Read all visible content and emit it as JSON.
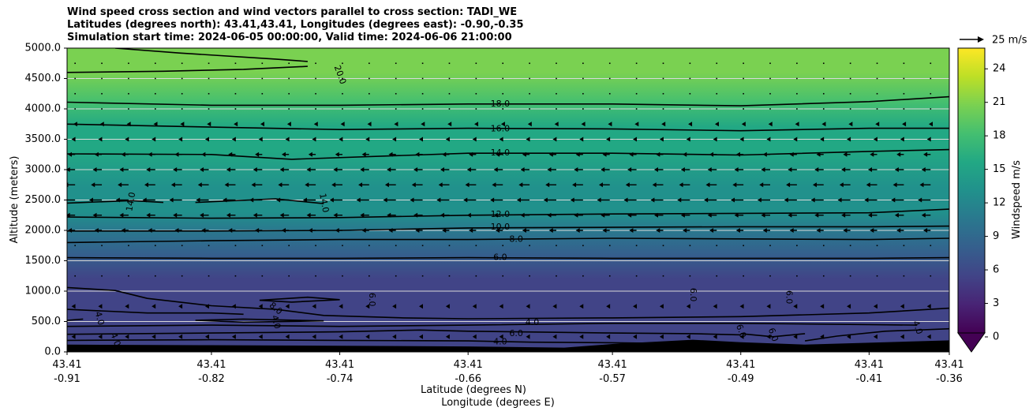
{
  "chart_data": {
    "type": "contour",
    "title_lines": [
      "Wind speed cross section and wind vectors parallel to cross section: TADI_WE",
      "Latitudes (degrees north): 43.41,43.41, Longitudes (degrees east): -0.90,-0.35",
      "Simulation start time: 2024-06-05 00:00:00, Valid time: 2024-06-06 21:00:00"
    ],
    "ylabel": "Altitude (meters)",
    "xlabel_lat": "Latitude (degrees N)",
    "xlabel_lon": "Longitude (degrees E)",
    "ylim": [
      0,
      5000
    ],
    "yticks": [
      "0.0",
      "500.0",
      "1000.0",
      "1500.0",
      "2000.0",
      "2500.0",
      "3000.0",
      "3500.0",
      "4000.0",
      "4500.0",
      "5000.0"
    ],
    "ytick_values": [
      0,
      500,
      1000,
      1500,
      2000,
      2500,
      3000,
      3500,
      4000,
      4500,
      5000
    ],
    "xlim": [
      -0.91,
      -0.36
    ],
    "xticks": [
      {
        "lat": "43.41",
        "lon": "-0.91",
        "value": -0.91
      },
      {
        "lat": "43.41",
        "lon": "-0.82",
        "value": -0.82
      },
      {
        "lat": "43.41",
        "lon": "-0.74",
        "value": -0.74
      },
      {
        "lat": "43.41",
        "lon": "-0.66",
        "value": -0.66
      },
      {
        "lat": "43.41",
        "lon": "-0.57",
        "value": -0.57
      },
      {
        "lat": "43.41",
        "lon": "-0.49",
        "value": -0.49
      },
      {
        "lat": "43.41",
        "lon": "-0.41",
        "value": -0.41
      },
      {
        "lat": "43.41",
        "lon": "-0.36",
        "value": -0.36
      }
    ],
    "colorbar": {
      "label": "Windspeed m/s",
      "min": 0,
      "max": 25.5,
      "ticks": [
        "0",
        "3",
        "6",
        "9",
        "12",
        "15",
        "18",
        "21",
        "24"
      ],
      "tick_values": [
        0,
        3,
        6,
        9,
        12,
        15,
        18,
        21,
        24
      ]
    },
    "quiver_key": "25 m/s",
    "speed_profile": [
      {
        "alt": 0,
        "speed": 4
      },
      {
        "alt": 300,
        "speed": 5
      },
      {
        "alt": 700,
        "speed": 4.5
      },
      {
        "alt": 1200,
        "speed": 5
      },
      {
        "alt": 1600,
        "speed": 6.5
      },
      {
        "alt": 2000,
        "speed": 10
      },
      {
        "alt": 2300,
        "speed": 12
      },
      {
        "alt": 2700,
        "speed": 13.5
      },
      {
        "alt": 3300,
        "speed": 14.5
      },
      {
        "alt": 3700,
        "speed": 16.2
      },
      {
        "alt": 4100,
        "speed": 18
      },
      {
        "alt": 4600,
        "speed": 19.5
      },
      {
        "alt": 5000,
        "speed": 20.5
      }
    ],
    "contour_labels": [
      {
        "text": "20.0",
        "lon": -0.74,
        "alt": 4560,
        "rot": 70
      },
      {
        "text": "18.0",
        "lon": -0.64,
        "alt": 4080,
        "rot": 0
      },
      {
        "text": "16.0",
        "lon": -0.64,
        "alt": 3670,
        "rot": 0
      },
      {
        "text": "14.0",
        "lon": -0.64,
        "alt": 3270,
        "rot": 0
      },
      {
        "text": "14.0",
        "lon": -0.87,
        "alt": 2470,
        "rot": -80
      },
      {
        "text": "14.0",
        "lon": -0.75,
        "alt": 2450,
        "rot": 80
      },
      {
        "text": "12.0",
        "lon": -0.64,
        "alt": 2260,
        "rot": 0
      },
      {
        "text": "10.0",
        "lon": -0.64,
        "alt": 2050,
        "rot": 0
      },
      {
        "text": "8.0",
        "lon": -0.63,
        "alt": 1850,
        "rot": 0
      },
      {
        "text": "6.0",
        "lon": -0.64,
        "alt": 1550,
        "rot": 0
      },
      {
        "text": "6.0",
        "lon": -0.72,
        "alt": 860,
        "rot": 90
      },
      {
        "text": "6.0",
        "lon": -0.52,
        "alt": 940,
        "rot": 90
      },
      {
        "text": "6.0",
        "lon": -0.46,
        "alt": 900,
        "rot": 90
      },
      {
        "text": "8.0",
        "lon": -0.78,
        "alt": 710,
        "rot": 40
      },
      {
        "text": "4.0",
        "lon": -0.89,
        "alt": 550,
        "rot": 75
      },
      {
        "text": "4.0",
        "lon": -0.78,
        "alt": 490,
        "rot": 75
      },
      {
        "text": "4.0",
        "lon": -0.62,
        "alt": 480,
        "rot": 0
      },
      {
        "text": "6.0",
        "lon": -0.63,
        "alt": 300,
        "rot": 0
      },
      {
        "text": "4.0",
        "lon": -0.64,
        "alt": 160,
        "rot": 0
      },
      {
        "text": "4.0",
        "lon": -0.38,
        "alt": 400,
        "rot": 70
      },
      {
        "text": "6.0",
        "lon": -0.49,
        "alt": 340,
        "rot": 70
      },
      {
        "text": "6.0",
        "lon": -0.47,
        "alt": 280,
        "rot": 70
      },
      {
        "text": "4.0",
        "lon": -0.88,
        "alt": 200,
        "rot": 70
      }
    ],
    "vector_levels": [
      {
        "alt": 250,
        "u": -2
      },
      {
        "alt": 750,
        "u": -2
      },
      {
        "alt": 1250,
        "u": -0.5
      },
      {
        "alt": 1750,
        "u": -0.5
      },
      {
        "alt": 2000,
        "u": -4
      },
      {
        "alt": 2250,
        "u": -5
      },
      {
        "alt": 2500,
        "u": -7
      },
      {
        "alt": 2750,
        "u": -6
      },
      {
        "alt": 3000,
        "u": -5
      },
      {
        "alt": 3250,
        "u": -4
      },
      {
        "alt": 3500,
        "u": -2
      },
      {
        "alt": 3750,
        "u": -1
      },
      {
        "alt": 4000,
        "u": -0.5
      },
      {
        "alt": 4250,
        "u": -0.3
      },
      {
        "alt": 4500,
        "u": -0.3
      },
      {
        "alt": 4750,
        "u": -0.3
      }
    ],
    "colors": {
      "cmap": [
        "#440154",
        "#482475",
        "#414487",
        "#355f8d",
        "#2a788e",
        "#21918c",
        "#22a884",
        "#44bf70",
        "#7ad151",
        "#bddf26",
        "#fde725"
      ],
      "terrain": "#000000",
      "grid": "#d9d9d9"
    }
  }
}
